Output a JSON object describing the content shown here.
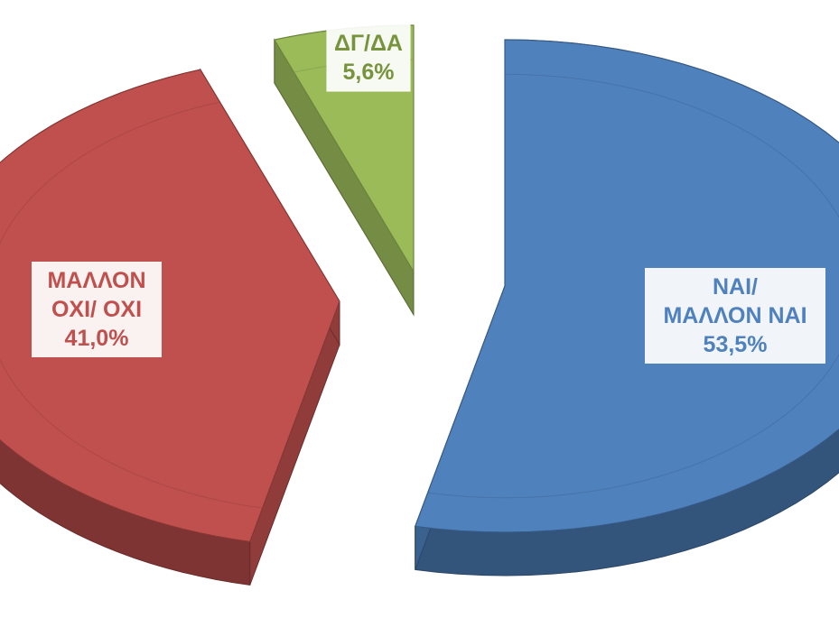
{
  "chart_data": {
    "type": "pie",
    "style": "exploded-3d",
    "slices": [
      {
        "key": "yes",
        "lines": [
          "ΝΑΙ/",
          "ΜΑΛΛΟΝ ΝΑΙ",
          "53,5%"
        ],
        "value": 53.5,
        "color": "#4F81BD",
        "text_color": "#4F81BD"
      },
      {
        "key": "no",
        "lines": [
          "ΜΑΛΛΟΝ",
          "ΟΧΙ/ ΟΧΙ",
          "41,0%"
        ],
        "value": 41.0,
        "color": "#C0504D",
        "text_color": "#C0504D"
      },
      {
        "key": "dkna",
        "lines": [
          "ΔΓ/ΔΑ",
          "5,6%"
        ],
        "value": 5.6,
        "color": "#9BBB59",
        "text_color": "#77933C"
      }
    ]
  }
}
